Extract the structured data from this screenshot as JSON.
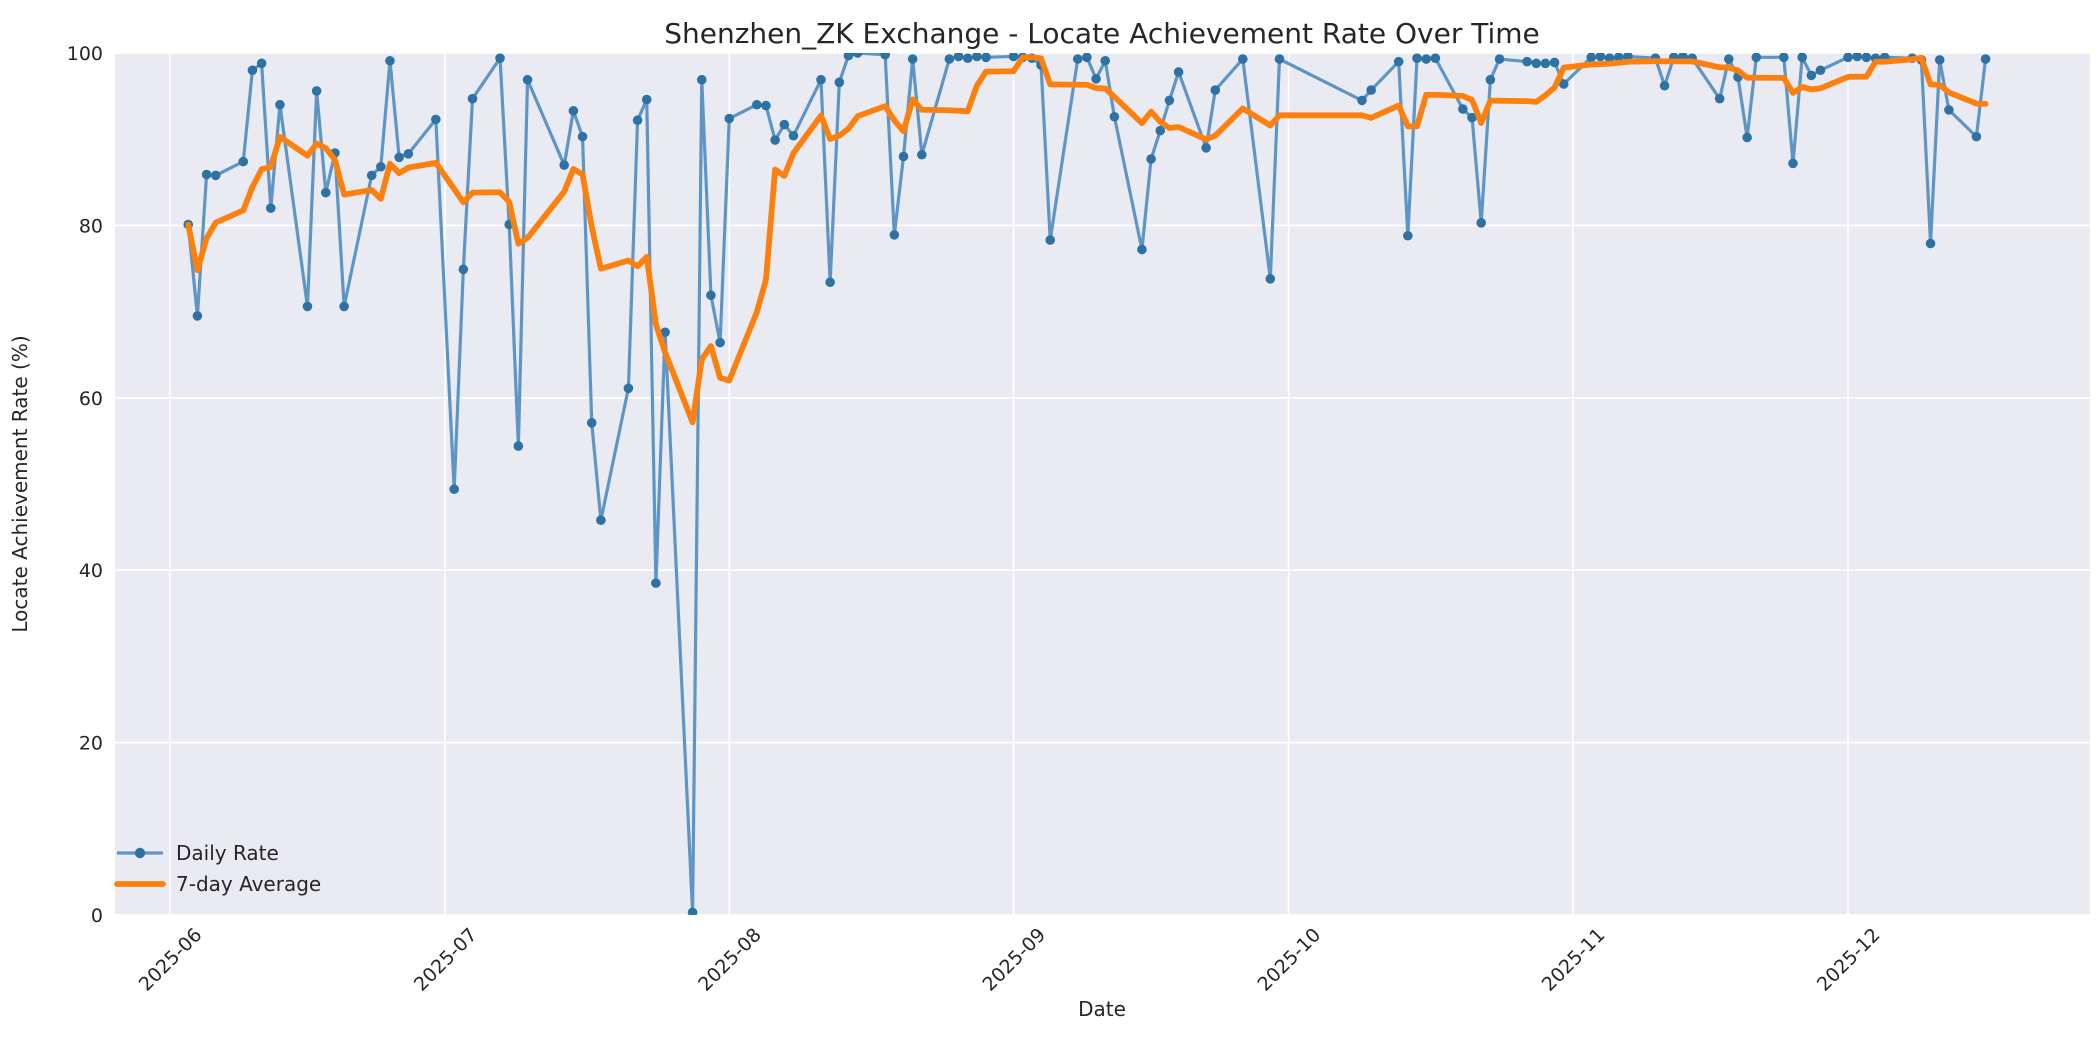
{
  "title": "Shenzhen_ZK Exchange - Locate Achievement Rate Over Time",
  "axes": {
    "xlabel": "Date",
    "ylabel": "Locate Achievement Rate (%)",
    "y_ticks": [
      0,
      20,
      40,
      60,
      80,
      100
    ],
    "x_ticks": [
      {
        "label": "2025-06",
        "date": "2025-06-01"
      },
      {
        "label": "2025-07",
        "date": "2025-07-01"
      },
      {
        "label": "2025-08",
        "date": "2025-08-01"
      },
      {
        "label": "2025-09",
        "date": "2025-09-01"
      },
      {
        "label": "2025-10",
        "date": "2025-10-01"
      },
      {
        "label": "2025-11",
        "date": "2025-11-01"
      },
      {
        "label": "2025-12",
        "date": "2025-12-01"
      }
    ],
    "ylim": [
      0,
      100
    ]
  },
  "legend": {
    "position": "lower left",
    "items": [
      {
        "label": "Daily Rate"
      },
      {
        "label": "7-day Average"
      }
    ]
  },
  "colors": {
    "figure_bg": "#ffffff",
    "plot_bg": "#eaeaf2",
    "grid": "#ffffff",
    "daily_line": "#5e95c5",
    "daily_marker": "#2e72a4",
    "avg_line": "#fc800d",
    "text": "#262626"
  },
  "chart_data": {
    "type": "line",
    "title": "Shenzhen_ZK Exchange - Locate Achievement Rate Over Time",
    "xlabel": "Date",
    "ylabel": "Locate Achievement Rate (%)",
    "grid": true,
    "legend_position": "lower left",
    "ylim": [
      0,
      100
    ],
    "xlim": [
      "2025-05-26",
      "2025-12-27"
    ],
    "x": [
      "2025-06-03",
      "2025-06-04",
      "2025-06-05",
      "2025-06-06",
      "2025-06-09",
      "2025-06-10",
      "2025-06-11",
      "2025-06-12",
      "2025-06-13",
      "2025-06-16",
      "2025-06-17",
      "2025-06-18",
      "2025-06-19",
      "2025-06-20",
      "2025-06-23",
      "2025-06-24",
      "2025-06-25",
      "2025-06-26",
      "2025-06-27",
      "2025-06-30",
      "2025-07-02",
      "2025-07-03",
      "2025-07-04",
      "2025-07-07",
      "2025-07-08",
      "2025-07-09",
      "2025-07-10",
      "2025-07-14",
      "2025-07-15",
      "2025-07-16",
      "2025-07-17",
      "2025-07-18",
      "2025-07-21",
      "2025-07-22",
      "2025-07-23",
      "2025-07-24",
      "2025-07-25",
      "2025-07-28",
      "2025-07-29",
      "2025-07-30",
      "2025-07-31",
      "2025-08-01",
      "2025-08-04",
      "2025-08-05",
      "2025-08-06",
      "2025-08-07",
      "2025-08-08",
      "2025-08-11",
      "2025-08-12",
      "2025-08-13",
      "2025-08-14",
      "2025-08-15",
      "2025-08-18",
      "2025-08-19",
      "2025-08-20",
      "2025-08-21",
      "2025-08-22",
      "2025-08-25",
      "2025-08-26",
      "2025-08-27",
      "2025-08-28",
      "2025-08-29",
      "2025-09-01",
      "2025-09-02",
      "2025-09-03",
      "2025-09-04",
      "2025-09-05",
      "2025-09-08",
      "2025-09-09",
      "2025-09-10",
      "2025-09-11",
      "2025-09-12",
      "2025-09-15",
      "2025-09-16",
      "2025-09-17",
      "2025-09-18",
      "2025-09-19",
      "2025-09-22",
      "2025-09-23",
      "2025-09-26",
      "2025-09-29",
      "2025-09-30",
      "2025-10-09",
      "2025-10-10",
      "2025-10-13",
      "2025-10-14",
      "2025-10-15",
      "2025-10-16",
      "2025-10-17",
      "2025-10-20",
      "2025-10-21",
      "2025-10-22",
      "2025-10-23",
      "2025-10-24",
      "2025-10-27",
      "2025-10-28",
      "2025-10-29",
      "2025-10-30",
      "2025-10-31",
      "2025-11-03",
      "2025-11-04",
      "2025-11-05",
      "2025-11-06",
      "2025-11-07",
      "2025-11-10",
      "2025-11-11",
      "2025-11-12",
      "2025-11-13",
      "2025-11-14",
      "2025-11-17",
      "2025-11-18",
      "2025-11-19",
      "2025-11-20",
      "2025-11-21",
      "2025-11-24",
      "2025-11-25",
      "2025-11-26",
      "2025-11-27",
      "2025-11-28",
      "2025-12-01",
      "2025-12-02",
      "2025-12-03",
      "2025-12-04",
      "2025-12-05",
      "2025-12-08",
      "2025-12-09",
      "2025-12-10",
      "2025-12-11",
      "2025-12-12",
      "2025-12-15",
      "2025-12-16"
    ],
    "series": [
      {
        "name": "Daily Rate",
        "style": "line+markers",
        "values": [
          80.1,
          69.5,
          85.9,
          85.8,
          87.4,
          98.0,
          98.8,
          82.0,
          94.0,
          70.6,
          95.6,
          83.8,
          88.4,
          70.6,
          85.8,
          86.8,
          99.1,
          87.9,
          88.3,
          92.3,
          49.4,
          74.9,
          94.7,
          99.4,
          80.1,
          54.4,
          96.9,
          87.0,
          93.3,
          90.3,
          57.1,
          45.8,
          61.1,
          92.2,
          94.6,
          38.5,
          67.6,
          0.3,
          96.9,
          71.9,
          66.4,
          92.4,
          94.0,
          93.9,
          89.9,
          91.7,
          90.4,
          96.9,
          73.4,
          96.6,
          99.7,
          100.0,
          99.8,
          78.9,
          88.0,
          99.3,
          88.2,
          99.3,
          99.6,
          99.4,
          99.6,
          99.5,
          99.6,
          99.5,
          99.4,
          98.6,
          78.3,
          99.3,
          99.5,
          97.0,
          99.1,
          92.6,
          77.2,
          87.7,
          91.0,
          94.5,
          97.8,
          89.0,
          95.7,
          99.3,
          73.8,
          99.3,
          94.5,
          95.7,
          99.0,
          78.8,
          99.4,
          99.3,
          99.4,
          93.5,
          92.5,
          80.3,
          96.9,
          99.3,
          99.0,
          98.8,
          98.8,
          98.9,
          96.4,
          99.5,
          99.6,
          99.4,
          99.5,
          99.6,
          99.4,
          96.2,
          99.5,
          99.6,
          99.4,
          94.7,
          99.3,
          97.2,
          90.2,
          99.5,
          99.5,
          87.2,
          99.5,
          97.4,
          98.0,
          99.5,
          99.6,
          99.5,
          99.4,
          99.5,
          99.4,
          99.2,
          77.9,
          99.2,
          93.4,
          90.3,
          99.3
        ]
      },
      {
        "name": "7-day Average",
        "style": "line",
        "derived": "rolling mean of Daily Rate, window 7 points, min_periods 1"
      }
    ]
  }
}
